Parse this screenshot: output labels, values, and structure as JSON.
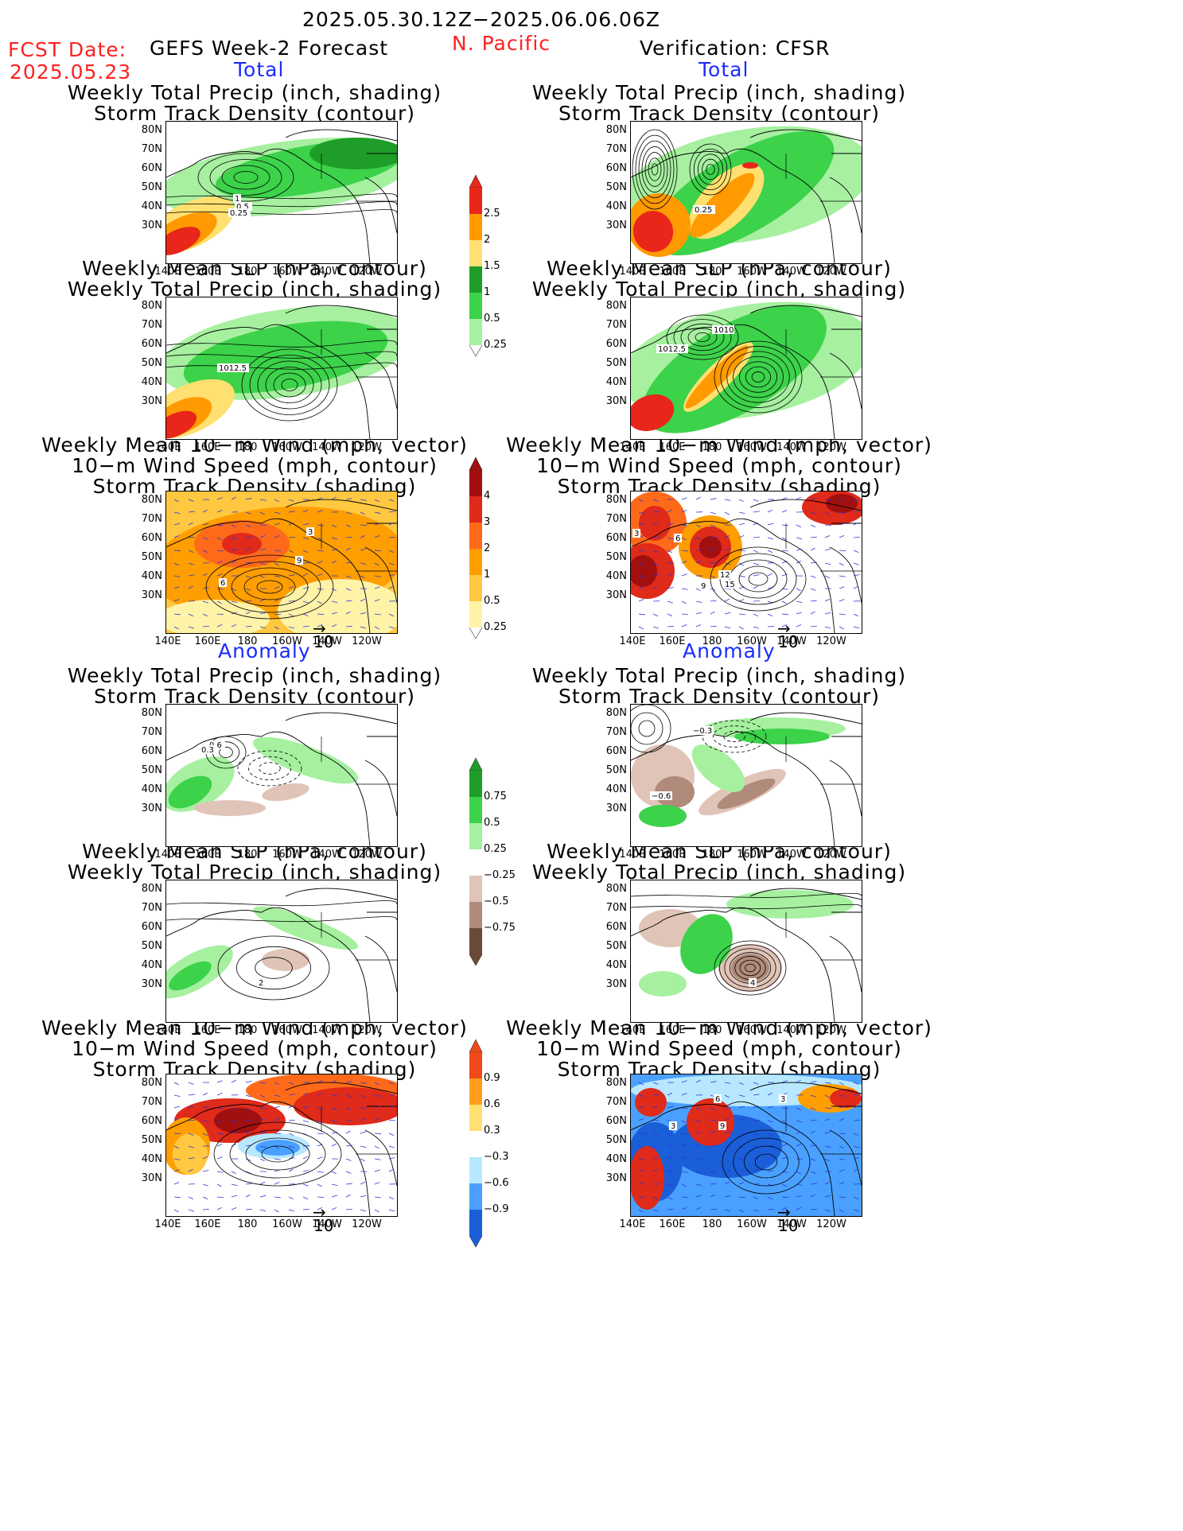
{
  "header": {
    "period": "2025.05.30.12Z−2025.06.06.06Z",
    "fcst_label": "FCST Date:",
    "fcst_date": "2025.05.23",
    "left_title": "GEFS Week-2 Forecast",
    "region": "N. Pacific",
    "right_title": "Verification: CFSR"
  },
  "sections": {
    "total": "Total",
    "anomaly": "Anomaly"
  },
  "titles": {
    "precip_track": [
      "Weekly Total Precip (inch, shading)",
      "Storm Track Density (contour)"
    ],
    "slp_precip": [
      "Weekly Mean SLP (hPa, contour)",
      "Weekly Total Precip (inch, shading)"
    ],
    "wind": [
      "Weekly Mean 10−m Wind (mph, vector)",
      "10−m Wind Speed (mph, contour)",
      "Storm Track Density (shading)"
    ]
  },
  "axes": {
    "lat": [
      "80N",
      "70N",
      "60N",
      "50N",
      "40N",
      "30N"
    ],
    "lon": [
      "140E",
      "160E",
      "180",
      "160W",
      "140W",
      "120W"
    ]
  },
  "vector_ref": "10",
  "colorbars": [
    {
      "id": "precip_total",
      "labels": [
        "2.5",
        "2",
        "1.5",
        "1",
        "0.5",
        "0.25"
      ],
      "colors": [
        "#e8261a",
        "#ff9a00",
        "#ffe070",
        "#1e9e28",
        "#3cd24a",
        "#a6f0a0"
      ]
    },
    {
      "id": "storm_total",
      "labels": [
        "4",
        "3",
        "2",
        "1",
        "0.5",
        "0.25"
      ],
      "colors": [
        "#a10f0f",
        "#e02a1a",
        "#ff6a1a",
        "#ff9e00",
        "#ffc840",
        "#fff3a8"
      ]
    },
    {
      "id": "precip_anom",
      "labels": [
        "0.75",
        "0.5",
        "0.25",
        "−0.25",
        "−0.5",
        "−0.75"
      ],
      "colors": [
        "#1e9e28",
        "#3cd24a",
        "#a6f0a0",
        "#ffffff",
        "#e0c4b8",
        "#b08a7a",
        "#6b4a3a"
      ]
    },
    {
      "id": "storm_anom",
      "labels": [
        "0.9",
        "0.6",
        "0.3",
        "−0.3",
        "−0.6",
        "−0.9"
      ],
      "colors": [
        "#f04a1a",
        "#ff9e1a",
        "#ffe070",
        "#ffffff",
        "#b8e8ff",
        "#4aa0ff",
        "#1a5ed8"
      ]
    }
  ],
  "contour_labels": {
    "fc_p1": [
      "1",
      "0.5",
      "0.25"
    ],
    "obs_p1": [
      "0.25"
    ],
    "fc_p2": [
      "1012.5"
    ],
    "obs_p2": [
      "1010",
      "1012.5"
    ],
    "fc_p3": [
      "3",
      "9",
      "6"
    ],
    "obs_p3": [
      "3",
      "6",
      "9",
      "12",
      "15"
    ],
    "fc_a1": [
      "0.6",
      "0.3"
    ],
    "obs_a1": [
      "−0.3",
      "−0.6"
    ],
    "fc_a2": [
      "2"
    ],
    "obs_a2": [
      "4"
    ],
    "obs_a3": [
      "6",
      "3",
      "3",
      "9"
    ]
  }
}
